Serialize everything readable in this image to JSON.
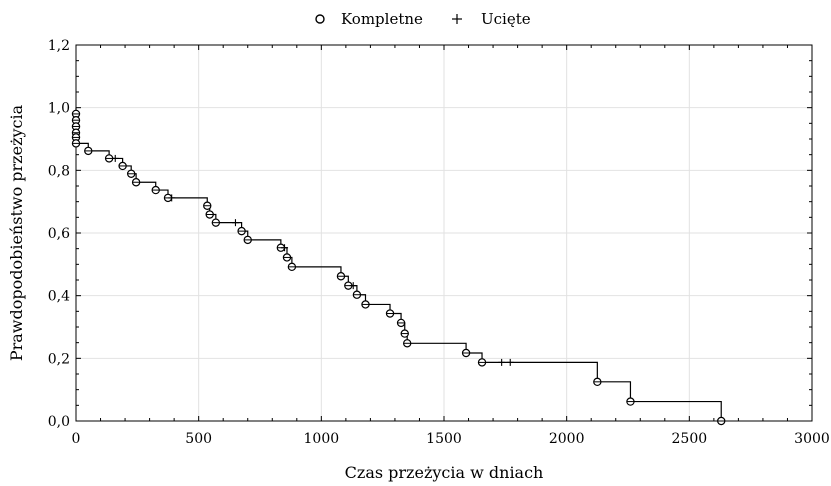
{
  "chart_data": {
    "type": "line",
    "xlabel": "Czas przeżycia w dniach",
    "ylabel": "Prawdopodobieństwo przeżycia",
    "xlim": [
      0,
      3000
    ],
    "ylim": [
      0,
      1.2
    ],
    "xticks": [
      0,
      500,
      1000,
      1500,
      2000,
      2500,
      3000
    ],
    "xtick_labels": [
      "0",
      "500",
      "1000",
      "1500",
      "2000",
      "2500",
      "3000"
    ],
    "yticks": [
      0,
      0.2,
      0.4,
      0.6,
      0.8,
      1.0,
      1.2
    ],
    "ytick_labels": [
      "0,0",
      "0,2",
      "0,4",
      "0,6",
      "0,8",
      "1,0",
      "1,2"
    ],
    "grid": true,
    "legend_position": "top-center",
    "legend": [
      {
        "label": "Kompletne",
        "marker": "circle"
      },
      {
        "label": "Ucięte",
        "marker": "plus"
      }
    ],
    "survival_steps": [
      [
        0,
        1.0
      ],
      [
        0,
        0.98
      ],
      [
        0,
        0.96
      ],
      [
        0,
        0.94
      ],
      [
        0,
        0.92
      ],
      [
        0,
        0.905
      ],
      [
        0,
        0.886
      ],
      [
        50,
        0.862
      ],
      [
        135,
        0.838
      ],
      [
        190,
        0.814
      ],
      [
        225,
        0.789
      ],
      [
        245,
        0.762
      ],
      [
        325,
        0.737
      ],
      [
        375,
        0.712
      ],
      [
        535,
        0.687
      ],
      [
        545,
        0.659
      ],
      [
        570,
        0.633
      ],
      [
        675,
        0.606
      ],
      [
        700,
        0.578
      ],
      [
        835,
        0.553
      ],
      [
        860,
        0.522
      ],
      [
        880,
        0.492
      ],
      [
        1080,
        0.462
      ],
      [
        1110,
        0.432
      ],
      [
        1145,
        0.403
      ],
      [
        1180,
        0.372
      ],
      [
        1280,
        0.343
      ],
      [
        1325,
        0.313
      ],
      [
        1340,
        0.279
      ],
      [
        1350,
        0.248
      ],
      [
        1590,
        0.217
      ],
      [
        1655,
        0.187
      ],
      [
        2125,
        0.125
      ],
      [
        2260,
        0.062
      ],
      [
        2630,
        0.0
      ]
    ],
    "complete_points": [
      [
        0,
        0.98
      ],
      [
        0,
        0.96
      ],
      [
        0,
        0.94
      ],
      [
        0,
        0.92
      ],
      [
        0,
        0.905
      ],
      [
        0,
        0.886
      ],
      [
        50,
        0.862
      ],
      [
        135,
        0.838
      ],
      [
        190,
        0.814
      ],
      [
        225,
        0.789
      ],
      [
        245,
        0.762
      ],
      [
        325,
        0.737
      ],
      [
        375,
        0.712
      ],
      [
        535,
        0.687
      ],
      [
        545,
        0.659
      ],
      [
        570,
        0.633
      ],
      [
        675,
        0.606
      ],
      [
        700,
        0.578
      ],
      [
        835,
        0.553
      ],
      [
        860,
        0.522
      ],
      [
        880,
        0.492
      ],
      [
        1080,
        0.462
      ],
      [
        1110,
        0.432
      ],
      [
        1145,
        0.403
      ],
      [
        1180,
        0.372
      ],
      [
        1280,
        0.343
      ],
      [
        1325,
        0.313
      ],
      [
        1340,
        0.279
      ],
      [
        1350,
        0.248
      ],
      [
        1590,
        0.217
      ],
      [
        1655,
        0.187
      ],
      [
        2125,
        0.125
      ],
      [
        2260,
        0.062
      ],
      [
        2630,
        0.0
      ]
    ],
    "censored_points": [
      [
        160,
        0.838
      ],
      [
        390,
        0.712
      ],
      [
        650,
        0.633
      ],
      [
        850,
        0.553
      ],
      [
        1130,
        0.432
      ],
      [
        1735,
        0.187
      ],
      [
        1770,
        0.187
      ]
    ]
  }
}
